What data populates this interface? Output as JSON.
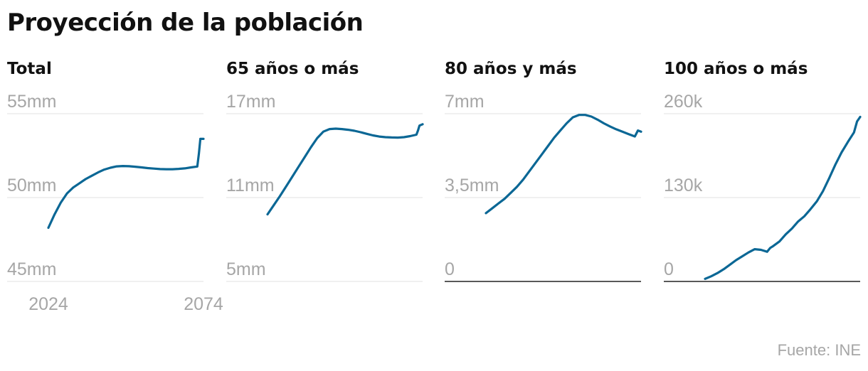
{
  "title": "Proyección de la población",
  "source": "Fuente: INE",
  "colors": {
    "line": "#0b6795",
    "grid": "#e2e2e2",
    "baseline": "#222222",
    "tick_text": "#a6a6a6"
  },
  "chart_data": [
    {
      "type": "line",
      "title": "Total",
      "unit": "people",
      "ylim": [
        45000000,
        55000000
      ],
      "y_ticks": [
        55000000,
        50000000,
        45000000
      ],
      "y_tick_labels": [
        "55mm",
        "50mm",
        "45mm"
      ],
      "x_range": [
        2024,
        2074
      ],
      "x_tick_labels": [
        "2024",
        "2074"
      ],
      "baseline": false,
      "x": [
        2024,
        2026,
        2028,
        2030,
        2032,
        2034,
        2036,
        2038,
        2040,
        2042,
        2044,
        2046,
        2048,
        2050,
        2052,
        2054,
        2056,
        2058,
        2060,
        2062,
        2064,
        2066,
        2068,
        2070,
        2072,
        2072.5,
        2073,
        2074
      ],
      "values": [
        48200000,
        49000000,
        49700000,
        50250000,
        50600000,
        50850000,
        51100000,
        51300000,
        51500000,
        51670000,
        51780000,
        51860000,
        51880000,
        51870000,
        51840000,
        51800000,
        51760000,
        51730000,
        51700000,
        51690000,
        51690000,
        51710000,
        51740000,
        51800000,
        51850000,
        52600000,
        53500000,
        53500000
      ]
    },
    {
      "type": "line",
      "title": "65 años o más",
      "unit": "people",
      "ylim": [
        5000000,
        17000000
      ],
      "y_ticks": [
        17000000,
        11000000,
        5000000
      ],
      "y_tick_labels": [
        "17mm",
        "11mm",
        "5mm"
      ],
      "x_range": [
        2024,
        2074
      ],
      "baseline": false,
      "x": [
        2024,
        2026,
        2028,
        2030,
        2032,
        2034,
        2036,
        2038,
        2040,
        2042,
        2044,
        2046,
        2048,
        2050,
        2052,
        2054,
        2056,
        2058,
        2060,
        2062,
        2064,
        2066,
        2068,
        2070,
        2072,
        2072.5,
        2073,
        2074
      ],
      "values": [
        9800000,
        10450000,
        11100000,
        11800000,
        12500000,
        13200000,
        13900000,
        14600000,
        15250000,
        15720000,
        15900000,
        15930000,
        15900000,
        15850000,
        15780000,
        15680000,
        15560000,
        15450000,
        15370000,
        15320000,
        15300000,
        15290000,
        15320000,
        15400000,
        15500000,
        15800000,
        16150000,
        16250000
      ]
    },
    {
      "type": "line",
      "title": "80 años y más",
      "unit": "people",
      "ylim": [
        0,
        7000000
      ],
      "y_ticks": [
        7000000,
        3500000,
        0
      ],
      "y_tick_labels": [
        "7mm",
        "3,5mm",
        "0"
      ],
      "x_range": [
        2024,
        2074
      ],
      "baseline": true,
      "x": [
        2024,
        2026,
        2028,
        2030,
        2032,
        2034,
        2036,
        2038,
        2040,
        2042,
        2044,
        2046,
        2048,
        2050,
        2052,
        2054,
        2056,
        2058,
        2060,
        2062,
        2064,
        2066,
        2068,
        2070,
        2072,
        2073,
        2074
      ],
      "values": [
        2850000,
        3050000,
        3250000,
        3450000,
        3700000,
        3950000,
        4250000,
        4600000,
        4950000,
        5300000,
        5650000,
        6000000,
        6300000,
        6600000,
        6850000,
        6950000,
        6950000,
        6880000,
        6750000,
        6600000,
        6470000,
        6350000,
        6250000,
        6150000,
        6050000,
        6300000,
        6250000
      ]
    },
    {
      "type": "line",
      "title": "100 años o más",
      "unit": "people",
      "ylim": [
        0,
        260000
      ],
      "y_ticks": [
        260000,
        130000,
        0
      ],
      "y_tick_labels": [
        "260k",
        "130k",
        "0"
      ],
      "x_range": [
        2024,
        2074
      ],
      "baseline": true,
      "x": [
        2024,
        2026,
        2028,
        2030,
        2032,
        2034,
        2036,
        2038,
        2040,
        2042,
        2044,
        2045,
        2046,
        2048,
        2050,
        2052,
        2054,
        2056,
        2058,
        2060,
        2062,
        2064,
        2066,
        2068,
        2070,
        2072,
        2073,
        2074
      ],
      "values": [
        4000,
        8000,
        13000,
        19000,
        26000,
        33000,
        39000,
        45000,
        50000,
        49000,
        46000,
        52000,
        55000,
        62000,
        73000,
        82000,
        93000,
        101000,
        112000,
        124000,
        140000,
        160000,
        181000,
        200000,
        216000,
        231000,
        248000,
        255000
      ]
    }
  ]
}
